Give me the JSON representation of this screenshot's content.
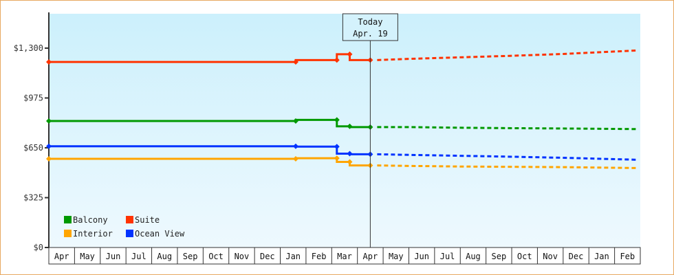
{
  "chart_data": {
    "type": "line",
    "title": "",
    "xlabel": "",
    "ylabel": "",
    "ylim": [
      0,
      1300
    ],
    "y_ticks": [
      "$0",
      "$325",
      "$650",
      "$975",
      "$1,300"
    ],
    "x_tick_labels": [
      "Apr",
      "May",
      "Jun",
      "Jul",
      "Aug",
      "Sep",
      "Oct",
      "Nov",
      "Dec",
      "Jan",
      "Feb",
      "Mar",
      "Apr",
      "May",
      "Jun",
      "Jul",
      "Aug",
      "Sep",
      "Oct",
      "Nov",
      "Dec",
      "Jan",
      "Feb"
    ],
    "today_marker": {
      "line1": "Today",
      "line2": "Apr. 19"
    },
    "legend": [
      "Balcony",
      "Suite",
      "Interior",
      "Ocean View"
    ],
    "series": [
      {
        "name": "Suite",
        "color": "#ff3300",
        "historical": [
          [
            0,
            1210
          ],
          [
            9.6,
            1210
          ],
          [
            9.6,
            1222
          ],
          [
            11.2,
            1222
          ],
          [
            11.2,
            1260
          ],
          [
            11.7,
            1260
          ],
          [
            11.7,
            1222
          ],
          [
            12.5,
            1222
          ]
        ],
        "forecast": [
          [
            12.5,
            1222
          ],
          [
            14,
            1230
          ],
          [
            16,
            1240
          ],
          [
            18,
            1250
          ],
          [
            20,
            1262
          ],
          [
            22.9,
            1285
          ]
        ]
      },
      {
        "name": "Balcony",
        "color": "#009900",
        "historical": [
          [
            0,
            825
          ],
          [
            9.6,
            825
          ],
          [
            9.6,
            832
          ],
          [
            11.2,
            832
          ],
          [
            11.2,
            790
          ],
          [
            11.7,
            790
          ],
          [
            11.7,
            785
          ],
          [
            12.5,
            785
          ]
        ],
        "forecast": [
          [
            12.5,
            785
          ],
          [
            14,
            785
          ],
          [
            16,
            781
          ],
          [
            18,
            778
          ],
          [
            20,
            776
          ],
          [
            22.9,
            772
          ]
        ]
      },
      {
        "name": "Ocean View",
        "color": "#0033ff",
        "historical": [
          [
            0,
            660
          ],
          [
            9.6,
            660
          ],
          [
            9.6,
            658
          ],
          [
            11.2,
            658
          ],
          [
            11.2,
            612
          ],
          [
            11.7,
            612
          ],
          [
            11.7,
            608
          ],
          [
            12.5,
            608
          ]
        ],
        "forecast": [
          [
            12.5,
            608
          ],
          [
            14,
            604
          ],
          [
            16,
            598
          ],
          [
            18,
            592
          ],
          [
            20,
            585
          ],
          [
            22.9,
            572
          ]
        ]
      },
      {
        "name": "Interior",
        "color": "#ffa500",
        "historical": [
          [
            0,
            578
          ],
          [
            9.6,
            578
          ],
          [
            9.6,
            582
          ],
          [
            11.2,
            582
          ],
          [
            11.2,
            558
          ],
          [
            11.7,
            558
          ],
          [
            11.7,
            535
          ],
          [
            12.5,
            535
          ]
        ],
        "forecast": [
          [
            12.5,
            535
          ],
          [
            14,
            532
          ],
          [
            16,
            528
          ],
          [
            18,
            526
          ],
          [
            20,
            524
          ],
          [
            22.9,
            518
          ]
        ]
      }
    ],
    "grid": false,
    "legend_position": "bottom-left"
  }
}
